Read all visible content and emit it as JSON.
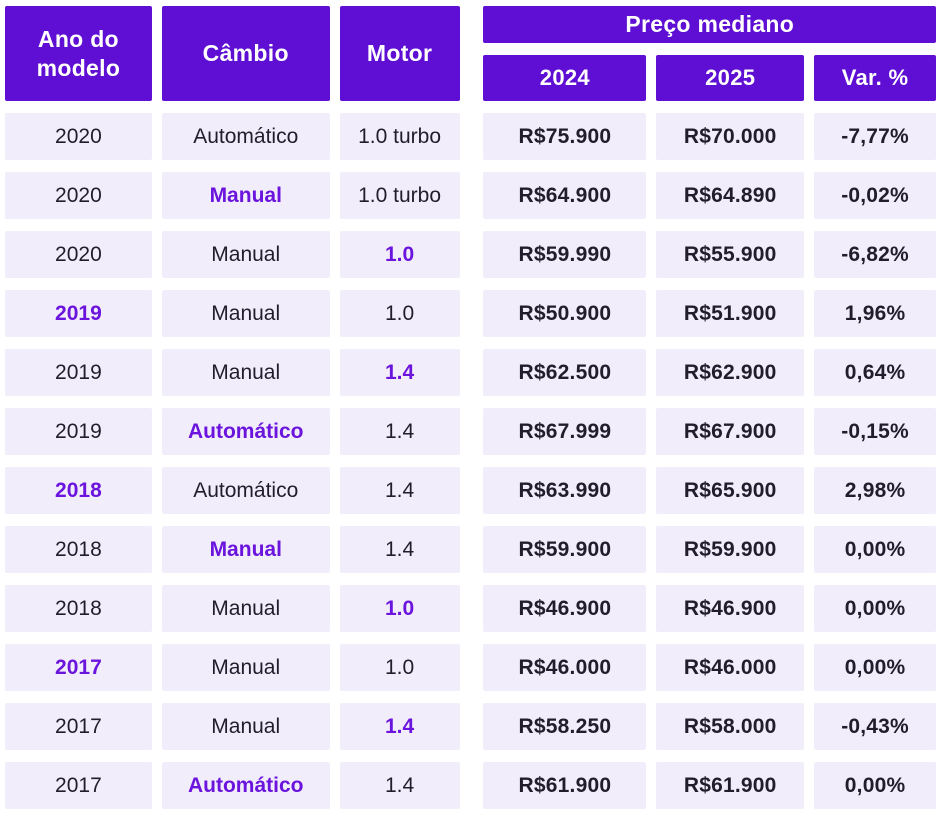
{
  "colors": {
    "header_purple": "#5e0fd3",
    "highlight_purple": "#6a14dd",
    "cell_background": "#f2edfa",
    "body_text": "#211d2b",
    "gap_white": "#ffffff"
  },
  "header": {
    "ano": "Ano do modelo",
    "cambio": "Câmbio",
    "motor": "Motor",
    "preco_group": "Preço mediano",
    "y2024": "2024",
    "y2025": "2025",
    "var": "Var. %"
  },
  "chart_data": {
    "type": "table",
    "title": "Preço mediano",
    "columns": [
      "Ano do modelo",
      "Câmbio",
      "Motor",
      "2024",
      "2025",
      "Var. %"
    ],
    "rows": [
      [
        "2020",
        "Automático",
        "1.0 turbo",
        "R$75.900",
        "R$70.000",
        "-7,77%"
      ],
      [
        "2020",
        "Manual",
        "1.0 turbo",
        "R$64.900",
        "R$64.890",
        "-0,02%"
      ],
      [
        "2020",
        "Manual",
        "1.0",
        "R$59.990",
        "R$55.900",
        "-6,82%"
      ],
      [
        "2019",
        "Manual",
        "1.0",
        "R$50.900",
        "R$51.900",
        "1,96%"
      ],
      [
        "2019",
        "Manual",
        "1.4",
        "R$62.500",
        "R$62.900",
        "0,64%"
      ],
      [
        "2019",
        "Automático",
        "1.4",
        "R$67.999",
        "R$67.900",
        "-0,15%"
      ],
      [
        "2018",
        "Automático",
        "1.4",
        "R$63.990",
        "R$65.900",
        "2,98%"
      ],
      [
        "2018",
        "Manual",
        "1.4",
        "R$59.900",
        "R$59.900",
        "0,00%"
      ],
      [
        "2018",
        "Manual",
        "1.0",
        "R$46.900",
        "R$46.900",
        "0,00%"
      ],
      [
        "2017",
        "Manual",
        "1.0",
        "R$46.000",
        "R$46.000",
        "0,00%"
      ],
      [
        "2017",
        "Manual",
        "1.4",
        "R$58.250",
        "R$58.000",
        "-0,43%"
      ],
      [
        "2017",
        "Automático",
        "1.4",
        "R$61.900",
        "R$61.900",
        "0,00%"
      ]
    ],
    "highlight_col_per_row": [
      -1,
      1,
      2,
      0,
      2,
      1,
      0,
      1,
      2,
      0,
      2,
      1
    ],
    "layout": {
      "grouped_header": "Preço mediano spans 2024, 2025, Var. %",
      "bold_columns": [
        3,
        4,
        5
      ],
      "grid": "white gaps between lavender cells, purple header cells"
    }
  }
}
